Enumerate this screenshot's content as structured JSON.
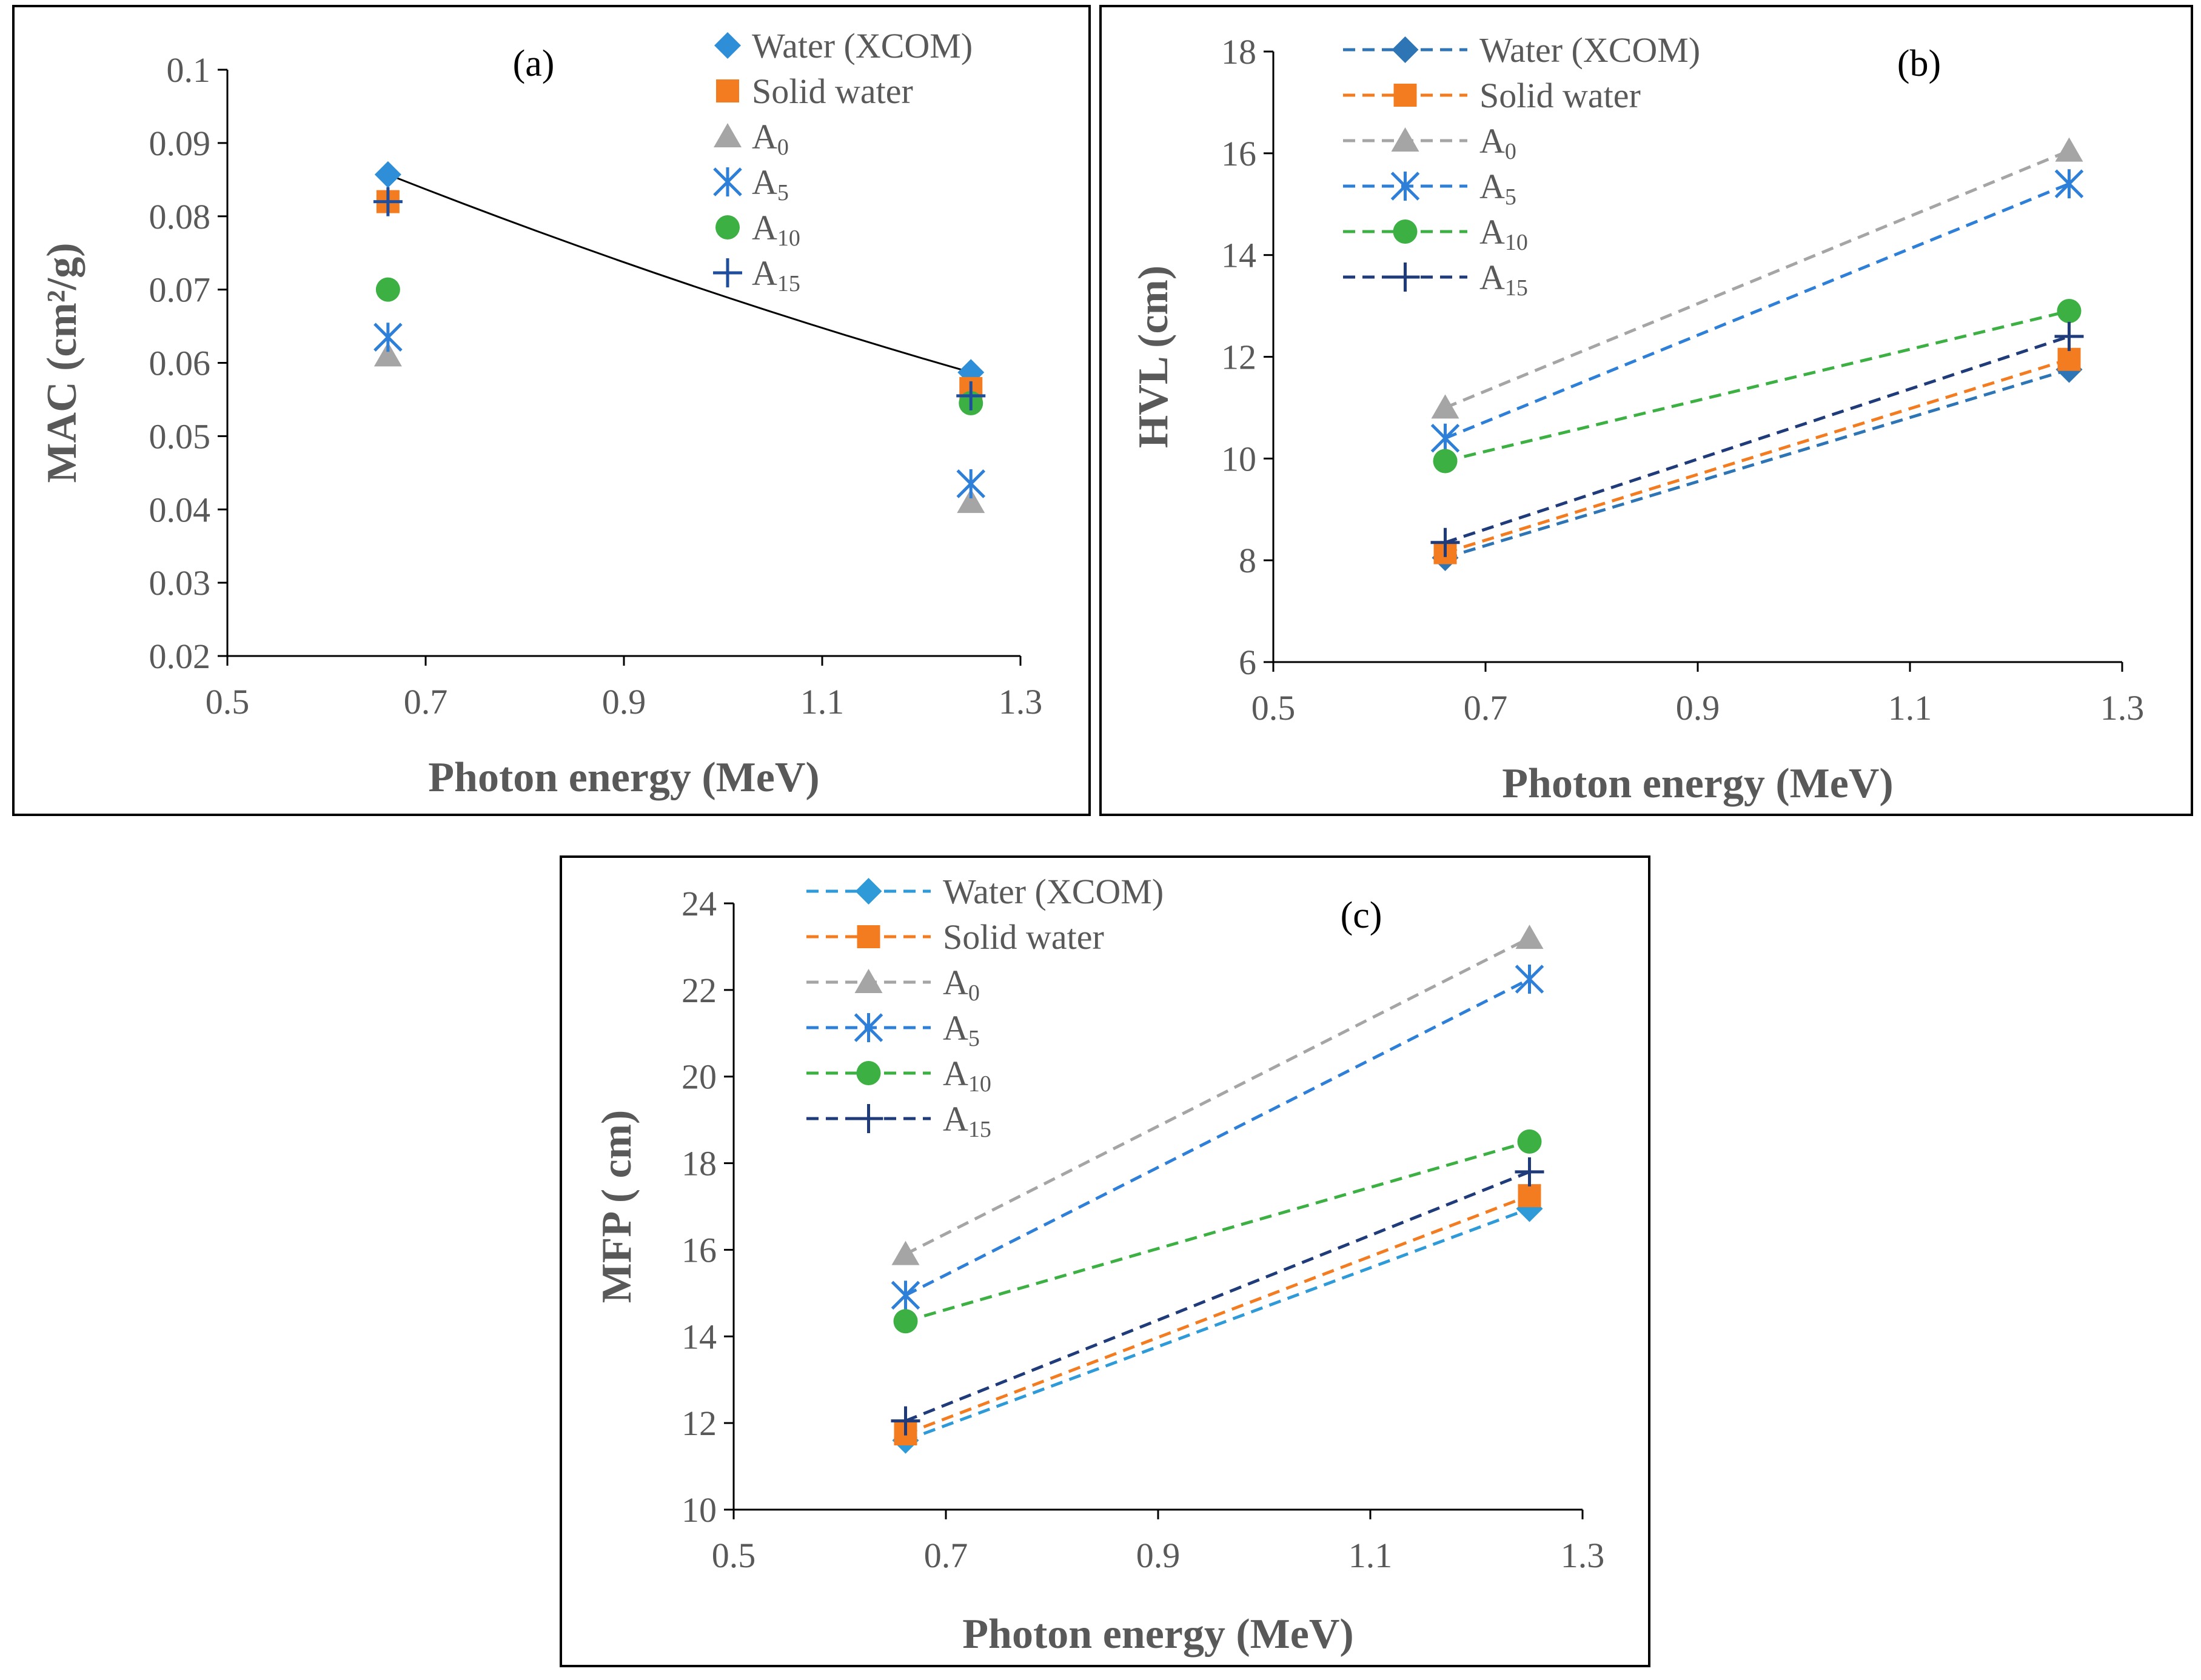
{
  "chart_data": [
    {
      "type": "scatter",
      "panel_label": "(a)",
      "xlabel": "Photon energy (MeV)",
      "ylabel": "MAC (cm²/g)",
      "xlim": [
        0.5,
        1.3
      ],
      "ylim": [
        0.02,
        0.1
      ],
      "xticks": [
        "0.5",
        "0.7",
        "0.9",
        "1.1",
        "1.3"
      ],
      "yticks": [
        "0.02",
        "0.03",
        "0.04",
        "0.05",
        "0.06",
        "0.07",
        "0.08",
        "0.09",
        "0.1"
      ],
      "x": [
        0.662,
        1.25
      ],
      "trendline": {
        "of": "Water (XCOM)",
        "style": "solid black"
      },
      "series": [
        {
          "name": "Water (XCOM)",
          "base": "Water (XCOM)",
          "sub": "",
          "color": "#2E8FD8",
          "marker": "diamond",
          "values": [
            0.0857,
            0.0587
          ]
        },
        {
          "name": "Solid water",
          "base": "Solid water",
          "sub": "",
          "color": "#F47C20",
          "marker": "square",
          "values": [
            0.082,
            0.0565
          ]
        },
        {
          "name": "A0",
          "base": "A",
          "sub": "0",
          "color": "#A5A5A5",
          "marker": "triangle",
          "values": [
            0.061,
            0.041
          ]
        },
        {
          "name": "A5",
          "base": "A",
          "sub": "5",
          "color": "#2E7FD8",
          "marker": "asterisk",
          "values": [
            0.0635,
            0.0435
          ]
        },
        {
          "name": "A10",
          "base": "A",
          "sub": "10",
          "color": "#3CB043",
          "marker": "circle",
          "values": [
            0.07,
            0.0545
          ]
        },
        {
          "name": "A15",
          "base": "A",
          "sub": "15",
          "color": "#1F4E9C",
          "marker": "plus",
          "values": [
            0.082,
            0.0555
          ]
        }
      ]
    },
    {
      "type": "line",
      "panel_label": "(b)",
      "xlabel": "Photon energy (MeV)",
      "ylabel": "HVL (cm)",
      "xlim": [
        0.5,
        1.3
      ],
      "ylim": [
        6,
        18
      ],
      "xticks": [
        "0.5",
        "0.7",
        "0.9",
        "1.1",
        "1.3"
      ],
      "yticks": [
        "6",
        "8",
        "10",
        "12",
        "14",
        "16",
        "18"
      ],
      "x": [
        0.662,
        1.25
      ],
      "series": [
        {
          "name": "Water (XCOM)",
          "base": "Water (XCOM)",
          "sub": "",
          "color": "#2E75B6",
          "marker": "diamond",
          "values": [
            8.05,
            11.75
          ]
        },
        {
          "name": "Solid water",
          "base": "Solid water",
          "sub": "",
          "color": "#F47C20",
          "marker": "square",
          "values": [
            8.15,
            11.95
          ]
        },
        {
          "name": "A0",
          "base": "A",
          "sub": "0",
          "color": "#A5A5A5",
          "marker": "triangle",
          "values": [
            11.0,
            16.05
          ]
        },
        {
          "name": "A5",
          "base": "A",
          "sub": "5",
          "color": "#2E7FD8",
          "marker": "asterisk",
          "values": [
            10.4,
            15.4
          ]
        },
        {
          "name": "A10",
          "base": "A",
          "sub": "10",
          "color": "#3CB043",
          "marker": "circle",
          "values": [
            9.95,
            12.9
          ]
        },
        {
          "name": "A15",
          "base": "A",
          "sub": "15",
          "color": "#1F3B7A",
          "marker": "plus",
          "values": [
            8.35,
            12.4
          ]
        }
      ]
    },
    {
      "type": "line",
      "panel_label": "(c)",
      "xlabel": "Photon energy (MeV)",
      "ylabel": "MFP ( cm)",
      "xlim": [
        0.5,
        1.3
      ],
      "ylim": [
        10,
        24
      ],
      "xticks": [
        "0.5",
        "0.7",
        "0.9",
        "1.1",
        "1.3"
      ],
      "yticks": [
        "10",
        "12",
        "14",
        "16",
        "18",
        "20",
        "22",
        "24"
      ],
      "x": [
        0.662,
        1.25
      ],
      "series": [
        {
          "name": "Water (XCOM)",
          "base": "Water (XCOM)",
          "sub": "",
          "color": "#2E9AD8",
          "marker": "diamond",
          "values": [
            11.6,
            16.95
          ]
        },
        {
          "name": "Solid water",
          "base": "Solid water",
          "sub": "",
          "color": "#F47C20",
          "marker": "square",
          "values": [
            11.75,
            17.25
          ]
        },
        {
          "name": "A0",
          "base": "A",
          "sub": "0",
          "color": "#A5A5A5",
          "marker": "triangle",
          "values": [
            15.9,
            23.2
          ]
        },
        {
          "name": "A5",
          "base": "A",
          "sub": "5",
          "color": "#2E7FD8",
          "marker": "asterisk",
          "values": [
            14.95,
            22.25
          ]
        },
        {
          "name": "A10",
          "base": "A",
          "sub": "10",
          "color": "#3CB043",
          "marker": "circle",
          "values": [
            14.35,
            18.5
          ]
        },
        {
          "name": "A15",
          "base": "A",
          "sub": "15",
          "color": "#1F3B7A",
          "marker": "plus",
          "values": [
            12.05,
            17.8
          ]
        }
      ]
    }
  ]
}
